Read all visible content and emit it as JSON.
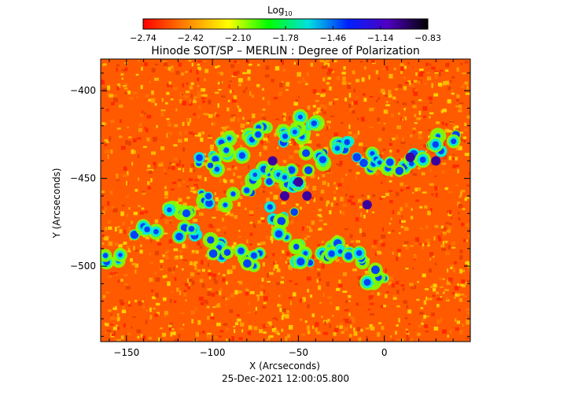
{
  "colorbar": {
    "title_prefix": "Log",
    "title_subscript": "10",
    "ticks": [
      "-2.74",
      "-2.42",
      "-2.10",
      "-1.78",
      "-1.46",
      "-1.14",
      "-0.83"
    ],
    "range": [
      -2.74,
      -0.83
    ],
    "colors": [
      "#ff0000",
      "#ff7a00",
      "#ffff00",
      "#00ff00",
      "#00e0e0",
      "#0020ff",
      "#5000c0",
      "#000000"
    ]
  },
  "plot": {
    "title": "Hinode SOT/SP – MERLIN : Degree of Polarization",
    "xlabel": "X (Arcseconds)",
    "ylabel": "Y (Arcseconds)",
    "timestamp": "25-Dec-2021 12:00:05.800"
  },
  "chart_data": {
    "type": "heatmap",
    "title": "Hinode SOT/SP – MERLIN : Degree of Polarization",
    "xlabel": "X (Arcseconds)",
    "ylabel": "Y (Arcseconds)",
    "xlim": [
      -165,
      50
    ],
    "ylim": [
      -543,
      -382
    ],
    "xticks": [
      -150,
      -100,
      -50,
      0
    ],
    "yticks": [
      -400,
      -450,
      -500
    ],
    "value_units": "log10 degree of polarization",
    "value_range": [
      -2.74,
      -0.83
    ]
  }
}
